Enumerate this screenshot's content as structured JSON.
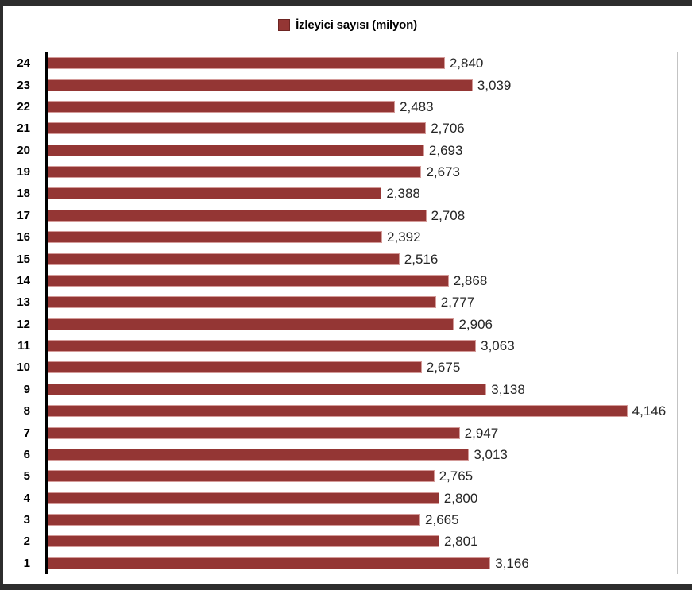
{
  "legend": {
    "label": "İzleyici sayısı (milyon)",
    "swatch_color": "#943634",
    "swatch_border_color": "#6d2422"
  },
  "colors": {
    "bar_fill": "#943634",
    "bar_border": "#d49b99",
    "axis_line": "#000000",
    "plot_border": "#c3c3c3",
    "outer_frame": "#2d2d2d",
    "value_label": "#262626",
    "category_label": "#000000",
    "background": "#ffffff"
  },
  "chart_data": {
    "type": "bar",
    "orientation": "horizontal",
    "title": "",
    "xlabel": "",
    "ylabel": "",
    "legend": [
      "İzleyici sayısı (milyon)"
    ],
    "legend_position": "top-center",
    "grid": false,
    "xlim": [
      0,
      4500
    ],
    "axis_order_note": "categories listed top-to-bottom as displayed; category 1 is at the bottom of the chart",
    "categories": [
      "24",
      "23",
      "22",
      "21",
      "20",
      "19",
      "18",
      "17",
      "16",
      "15",
      "14",
      "13",
      "12",
      "11",
      "10",
      "9",
      "8",
      "7",
      "6",
      "5",
      "4",
      "3",
      "2",
      "1"
    ],
    "series": [
      {
        "name": "İzleyici sayısı (milyon)",
        "values": [
          2840,
          3039,
          2483,
          2706,
          2693,
          2673,
          2388,
          2708,
          2392,
          2516,
          2868,
          2777,
          2906,
          3063,
          2675,
          3138,
          4146,
          2947,
          3013,
          2765,
          2800,
          2665,
          2801,
          3166
        ],
        "value_labels": [
          "2,840",
          "3,039",
          "2,483",
          "2,706",
          "2,693",
          "2,673",
          "2,388",
          "2,708",
          "2,392",
          "2,516",
          "2,868",
          "2,777",
          "2,906",
          "3,063",
          "2,675",
          "3,138",
          "4,146",
          "2,947",
          "3,013",
          "2,765",
          "2,800",
          "2,665",
          "2,801",
          "3,166"
        ]
      }
    ]
  }
}
